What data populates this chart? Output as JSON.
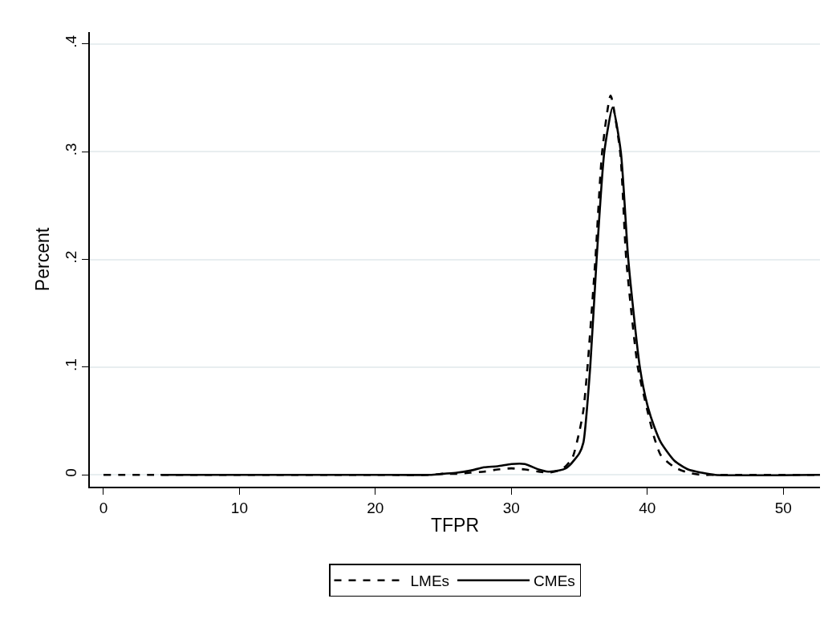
{
  "chart_data": {
    "type": "line",
    "xlabel": "TFPR",
    "ylabel": "Percent",
    "xlim": [
      -1,
      52.7
    ],
    "xticks": [
      0,
      10,
      20,
      30,
      40,
      50
    ],
    "ylim": [
      -0.011,
      0.411
    ],
    "yticks": [
      0,
      {
        "value": 0.1,
        "label": ".1"
      },
      {
        "value": 0.2,
        "label": ".2"
      },
      {
        "value": 0.3,
        "label": ".3"
      },
      {
        "value": 0.4,
        "label": ".4"
      }
    ],
    "grid": "y",
    "legend": "bottom",
    "marker": "none",
    "series": [
      {
        "name": "LMEs",
        "color": "#000000",
        "line_style": "dashed",
        "x": [
          0,
          10,
          20,
          24,
          25,
          26,
          27,
          28,
          29,
          30,
          31,
          32,
          32.7,
          33.5,
          34,
          34.5,
          35,
          35.3,
          35.6,
          36.18,
          36.68,
          37.3,
          38.0,
          38.45,
          39.3,
          40,
          40.5,
          41,
          42,
          43,
          44,
          45,
          52.7
        ],
        "values": [
          0,
          0,
          0,
          0,
          0.001,
          0.001,
          0.002,
          0.003,
          0.005,
          0.006,
          0.005,
          0.003,
          0.002,
          0.004,
          0.008,
          0.016,
          0.04,
          0.06,
          0.1,
          0.2,
          0.3,
          0.352,
          0.3,
          0.2,
          0.1,
          0.06,
          0.035,
          0.018,
          0.007,
          0.002,
          0,
          0,
          0
        ]
      },
      {
        "name": "CMEs",
        "color": "#000000",
        "line_style": "solid",
        "x": [
          4.2,
          10,
          20,
          24,
          25,
          26,
          27,
          28,
          29,
          30,
          31,
          32,
          32.7,
          33.5,
          34,
          34.3,
          35,
          35.3,
          35.8,
          36.27,
          36.84,
          37.45,
          38.05,
          38.6,
          39.45,
          40,
          40.5,
          41,
          42,
          43,
          44,
          45,
          52.7
        ],
        "values": [
          0,
          0,
          0,
          0,
          0.001,
          0.002,
          0.004,
          0.007,
          0.008,
          0.01,
          0.01,
          0.005,
          0.003,
          0.004,
          0.006,
          0.009,
          0.02,
          0.03,
          0.1,
          0.2,
          0.3,
          0.341,
          0.3,
          0.2,
          0.1,
          0.065,
          0.045,
          0.03,
          0.013,
          0.005,
          0.002,
          0,
          0
        ]
      }
    ]
  }
}
